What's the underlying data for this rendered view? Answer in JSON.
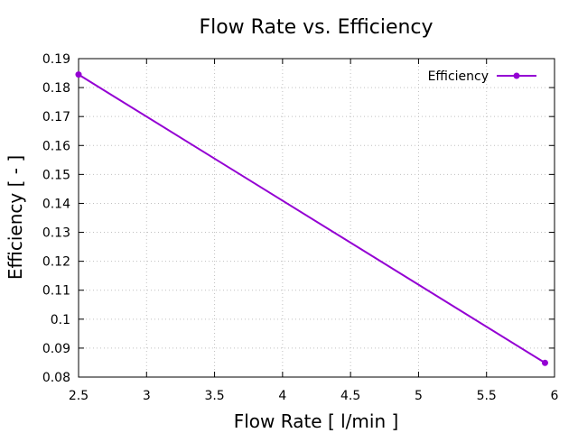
{
  "chart_data": {
    "type": "line",
    "title": "Flow Rate  vs. Efficiency",
    "xlabel": "Flow Rate [ l/min ]",
    "ylabel": "Efficiency [ - ]",
    "xlim": [
      2.5,
      6
    ],
    "ylim": [
      0.08,
      0.19
    ],
    "xticks": [
      2.5,
      3,
      3.5,
      4,
      4.5,
      5,
      5.5,
      6
    ],
    "yticks": [
      0.08,
      0.09,
      0.1,
      0.11,
      0.12,
      0.13,
      0.14,
      0.15,
      0.16,
      0.17,
      0.18,
      0.19
    ],
    "xtick_labels": [
      "2.5",
      "3",
      "3.5",
      "4",
      "4.5",
      "5",
      "5.5",
      "6"
    ],
    "ytick_labels": [
      "0.08",
      "0.09",
      "0.1",
      "0.11",
      "0.12",
      "0.13",
      "0.14",
      "0.15",
      "0.16",
      "0.17",
      "0.18",
      "0.19"
    ],
    "grid": true,
    "legend_position": "top-right",
    "series": [
      {
        "name": "Efficiency",
        "color": "#9400d3",
        "x": [
          2.5,
          5.93
        ],
        "y": [
          0.1845,
          0.0849
        ]
      }
    ]
  }
}
